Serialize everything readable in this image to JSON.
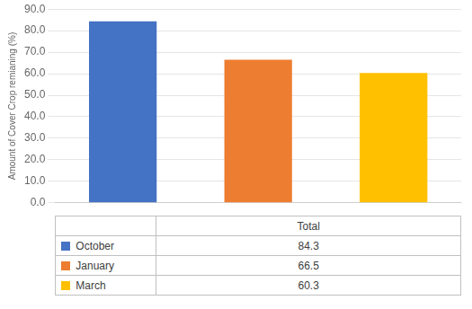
{
  "chart_data": {
    "type": "bar",
    "categories": [
      "October",
      "January",
      "March"
    ],
    "values": [
      84.3,
      66.5,
      60.3
    ],
    "colors": [
      "#4472C4",
      "#ED7D31",
      "#FFC000"
    ],
    "ylabel": "Amount of Cover Crop remianing (%)",
    "ylim": [
      0,
      90
    ],
    "yticks": [
      {
        "value": 0,
        "label": "0.0"
      },
      {
        "value": 10,
        "label": "10.0"
      },
      {
        "value": 20,
        "label": "20.0"
      },
      {
        "value": 30,
        "label": "30.0"
      },
      {
        "value": 40,
        "label": "40.0"
      },
      {
        "value": 50,
        "label": "50.0"
      },
      {
        "value": 60,
        "label": "60.0"
      },
      {
        "value": 70,
        "label": "70.0"
      },
      {
        "value": 80,
        "label": "80.0"
      },
      {
        "value": 90,
        "label": "90.0"
      }
    ],
    "grid": true,
    "tick_labels": "y",
    "legend": "bottom",
    "data_labels": true,
    "annotations": [
      "Total"
    ]
  }
}
